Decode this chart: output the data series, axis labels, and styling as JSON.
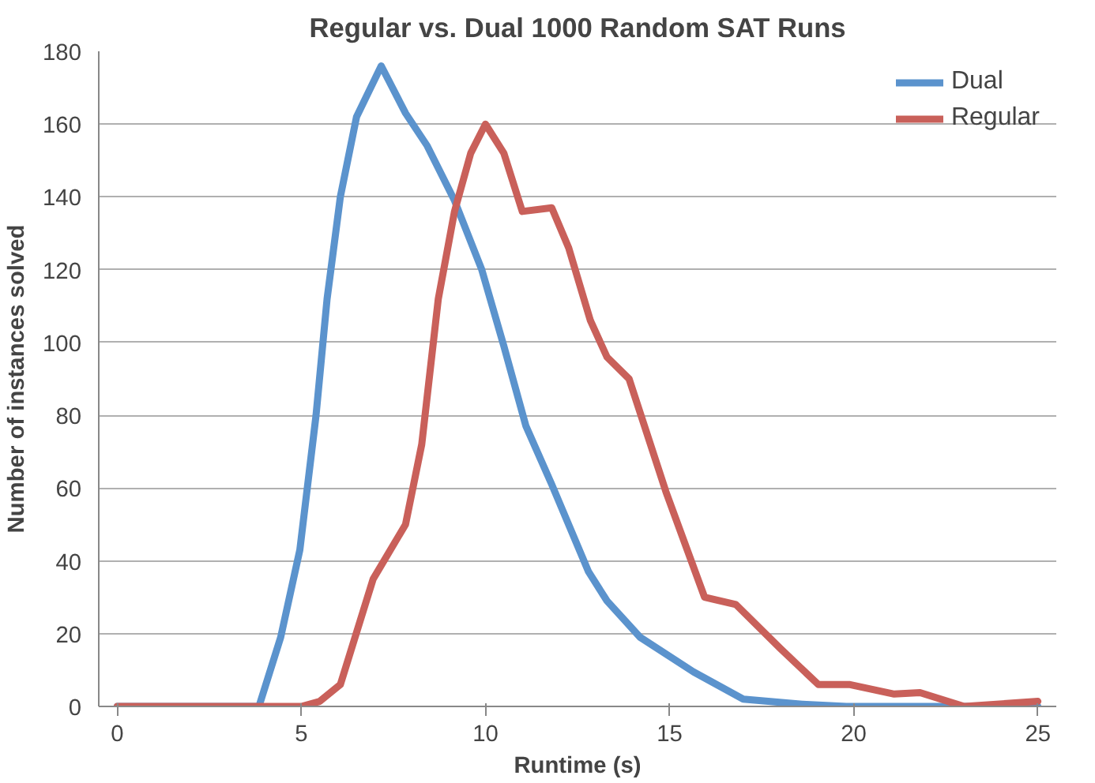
{
  "chart_data": {
    "type": "line",
    "title": "Regular vs. Dual 1000 Random SAT Runs",
    "xlabel": "Runtime (s)",
    "ylabel": "Number of instances solved",
    "xlim": [
      -0.5,
      25.5
    ],
    "xticks": [
      0,
      5,
      10,
      15,
      20,
      25
    ],
    "ylim": [
      0,
      180
    ],
    "yticks": [
      0,
      20,
      40,
      60,
      80,
      100,
      120,
      140,
      160,
      180
    ],
    "grid": "y",
    "legend": "top right",
    "line_style": "solid",
    "series": [
      {
        "name": "Dual",
        "color": "#5b93cd",
        "x": [
          0,
          3.85,
          4.44,
          4.96,
          5.4,
          5.7,
          6.06,
          6.5,
          7.17,
          7.83,
          8.42,
          9.16,
          9.9,
          10.5,
          11.1,
          11.8,
          12.8,
          13.3,
          14.2,
          15.65,
          17.0,
          18.6,
          19.8,
          25
        ],
        "values": [
          0,
          0,
          19,
          43,
          80,
          112,
          140,
          162,
          176,
          163,
          154,
          139,
          120,
          99,
          77,
          61,
          37,
          29,
          19,
          9.5,
          2,
          0.6,
          0,
          0
        ]
      },
      {
        "name": "Regular",
        "color": "#c9605a",
        "x": [
          0,
          5,
          5.5,
          6.06,
          6.95,
          7.83,
          8.27,
          8.72,
          9.16,
          9.6,
          10.0,
          10.5,
          11.0,
          11.8,
          12.26,
          12.85,
          13.3,
          13.9,
          14.9,
          15.95,
          16.8,
          18.0,
          19.04,
          19.9,
          21.1,
          21.8,
          23.0,
          25.0
        ],
        "values": [
          0,
          0,
          1.4,
          6,
          35,
          50,
          72,
          112,
          136,
          152,
          160,
          152,
          136,
          137,
          126,
          106,
          96,
          90,
          59,
          30,
          28,
          16,
          6,
          6,
          3.4,
          3.8,
          0,
          1.4
        ]
      }
    ]
  }
}
